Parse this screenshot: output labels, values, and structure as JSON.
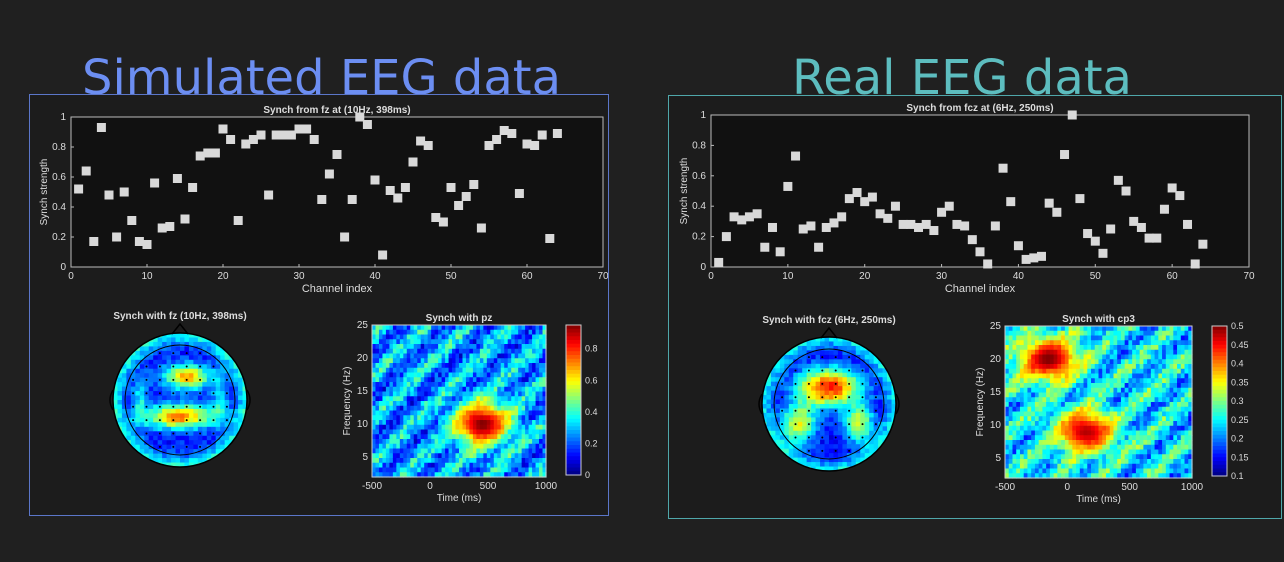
{
  "titles": {
    "left": "Simulated EEG data",
    "right": "Real EEG data"
  },
  "colors": {
    "left_title": "#6c8ef2",
    "right_title": "#5dbdbf",
    "left_border": "#5b76c9",
    "right_border": "#4fa7aa",
    "marker": "#d9d9d9"
  },
  "chart_data": [
    {
      "id": "sim-scatter",
      "type": "scatter",
      "title": "Synch from fz at (10Hz, 398ms)",
      "xlabel": "Channel index",
      "ylabel": "Synch strength",
      "xlim": [
        0,
        70
      ],
      "ylim": [
        0,
        1
      ],
      "xticks": [
        0,
        10,
        20,
        30,
        40,
        50,
        60,
        70
      ],
      "yticks": [
        0,
        0.2,
        0.4,
        0.6,
        0.8,
        1
      ],
      "x": [
        1,
        2,
        3,
        4,
        5,
        6,
        7,
        8,
        9,
        10,
        11,
        12,
        13,
        14,
        15,
        16,
        17,
        18,
        19,
        20,
        21,
        22,
        23,
        24,
        25,
        26,
        27,
        28,
        29,
        30,
        31,
        32,
        33,
        34,
        35,
        36,
        37,
        38,
        39,
        40,
        41,
        42,
        43,
        44,
        45,
        46,
        47,
        48,
        49,
        50,
        51,
        52,
        53,
        54,
        55,
        56,
        57,
        58,
        59,
        60,
        61,
        62,
        63,
        64
      ],
      "y": [
        0.52,
        0.64,
        0.17,
        0.93,
        0.48,
        0.2,
        0.5,
        0.31,
        0.17,
        0.15,
        0.56,
        0.26,
        0.27,
        0.59,
        0.32,
        0.53,
        0.74,
        0.76,
        0.76,
        0.92,
        0.85,
        0.31,
        0.82,
        0.85,
        0.88,
        0.48,
        0.88,
        0.88,
        0.88,
        0.92,
        0.92,
        0.85,
        0.45,
        0.62,
        0.75,
        0.2,
        0.45,
        1.0,
        0.95,
        0.58,
        0.08,
        0.51,
        0.46,
        0.53,
        0.7,
        0.84,
        0.81,
        0.33,
        0.3,
        0.53,
        0.41,
        0.47,
        0.55,
        0.26,
        0.81,
        0.85,
        0.91,
        0.89,
        0.49,
        0.82,
        0.81,
        0.88,
        0.19,
        0.89
      ]
    },
    {
      "id": "real-scatter",
      "type": "scatter",
      "title": "Synch from fcz at (6Hz, 250ms)",
      "xlabel": "Channel index",
      "ylabel": "Synch strength",
      "xlim": [
        0,
        70
      ],
      "ylim": [
        0,
        1
      ],
      "xticks": [
        0,
        10,
        20,
        30,
        40,
        50,
        60,
        70
      ],
      "yticks": [
        0,
        0.2,
        0.4,
        0.6,
        0.8,
        1
      ],
      "x": [
        1,
        2,
        3,
        4,
        5,
        6,
        7,
        8,
        9,
        10,
        11,
        12,
        13,
        14,
        15,
        16,
        17,
        18,
        19,
        20,
        21,
        22,
        23,
        24,
        25,
        26,
        27,
        28,
        29,
        30,
        31,
        32,
        33,
        34,
        35,
        36,
        37,
        38,
        39,
        40,
        41,
        42,
        43,
        44,
        45,
        46,
        47,
        48,
        49,
        50,
        51,
        52,
        53,
        54,
        55,
        56,
        57,
        58,
        59,
        60,
        61,
        62,
        63,
        64
      ],
      "y": [
        0.03,
        0.2,
        0.33,
        0.31,
        0.33,
        0.35,
        0.13,
        0.26,
        0.1,
        0.53,
        0.73,
        0.25,
        0.27,
        0.13,
        0.26,
        0.29,
        0.33,
        0.45,
        0.49,
        0.43,
        0.46,
        0.35,
        0.32,
        0.4,
        0.28,
        0.28,
        0.26,
        0.28,
        0.24,
        0.36,
        0.4,
        0.28,
        0.27,
        0.18,
        0.1,
        0.02,
        0.27,
        0.65,
        0.43,
        0.14,
        0.05,
        0.06,
        0.07,
        0.42,
        0.36,
        0.74,
        1.0,
        0.45,
        0.22,
        0.17,
        0.09,
        0.25,
        0.57,
        0.5,
        0.3,
        0.26,
        0.19,
        0.19,
        0.38,
        0.52,
        0.47,
        0.28,
        0.02,
        0.15
      ]
    },
    {
      "id": "sim-topo",
      "type": "heatmap",
      "title": "Synch with fz (10Hz, 398ms)"
    },
    {
      "id": "sim-tf",
      "type": "heatmap",
      "title": "Synch with pz",
      "xlabel": "Time (ms)",
      "ylabel": "Frequency (Hz)",
      "xlim": [
        -500,
        1000
      ],
      "ylim": [
        2,
        25
      ],
      "xticks": [
        -500,
        0,
        500,
        1000
      ],
      "yticks": [
        5,
        10,
        15,
        20,
        25
      ],
      "colorbar_ticks": [
        0,
        0.2,
        0.4,
        0.6,
        0.8
      ],
      "clim": [
        0,
        0.95
      ],
      "hotspots": [
        {
          "time": 450,
          "freq": 10,
          "value": 0.95
        }
      ]
    },
    {
      "id": "real-topo",
      "type": "heatmap",
      "title": "Synch with fcz (6Hz, 250ms)"
    },
    {
      "id": "real-tf",
      "type": "heatmap",
      "title": "Synch with cp3",
      "xlabel": "Time (ms)",
      "ylabel": "Frequency (Hz)",
      "xlim": [
        -500,
        1000
      ],
      "ylim": [
        2,
        25
      ],
      "xticks": [
        -500,
        0,
        500,
        1000
      ],
      "yticks": [
        5,
        10,
        15,
        20,
        25
      ],
      "colorbar_ticks": [
        0.1,
        0.15,
        0.2,
        0.25,
        0.3,
        0.35,
        0.4,
        0.45,
        0.5
      ],
      "clim": [
        0.1,
        0.5
      ],
      "hotspots": [
        {
          "time": -150,
          "freq": 20,
          "value": 0.5
        },
        {
          "time": 150,
          "freq": 9,
          "value": 0.48
        }
      ]
    }
  ]
}
